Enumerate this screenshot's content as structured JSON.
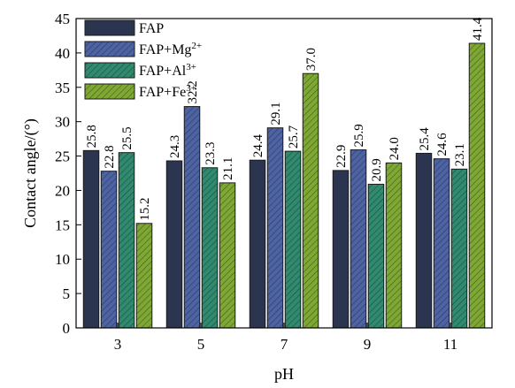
{
  "chart_data": {
    "type": "bar",
    "xlabel": "pH",
    "ylabel": "Contact angle/(°)",
    "ylim": [
      0,
      45
    ],
    "yticks": [
      0,
      5,
      10,
      15,
      20,
      25,
      30,
      35,
      40,
      45
    ],
    "categories": [
      "3",
      "5",
      "7",
      "9",
      "11"
    ],
    "legend_position": "top-left",
    "grid": false,
    "series": [
      {
        "name": "FAP",
        "legend": {
          "base": "FAP",
          "sup": ""
        },
        "color": "#2b3550",
        "hatch": false,
        "values": [
          25.8,
          24.3,
          24.4,
          22.9,
          25.4
        ],
        "labels": [
          "25.8",
          "24.3",
          "24.4",
          "22.9",
          "25.4"
        ]
      },
      {
        "name": "FAP+Mg2+",
        "legend": {
          "base": "FAP+Mg",
          "sup": "2+"
        },
        "color": "#4d63a3",
        "hatch": true,
        "values": [
          22.8,
          32.2,
          29.1,
          25.9,
          24.6
        ],
        "labels": [
          "22.8",
          "32.2",
          "29.1",
          "25.9",
          "24.6"
        ]
      },
      {
        "name": "FAP+Al3+",
        "legend": {
          "base": "FAP+Al",
          "sup": "3+"
        },
        "color": "#2f8a6e",
        "hatch": true,
        "values": [
          25.5,
          23.3,
          25.7,
          20.9,
          23.1
        ],
        "labels": [
          "25.5",
          "23.3",
          "25.7",
          "20.9",
          "23.1"
        ]
      },
      {
        "name": "FAP+Fe3+",
        "legend": {
          "base": "FAP+Fe",
          "sup": "3+"
        },
        "color": "#7fa832",
        "hatch": true,
        "values": [
          15.2,
          21.1,
          37.0,
          24.0,
          41.4
        ],
        "labels": [
          "15.2",
          "21.1",
          "37.0",
          "24.0",
          "41.4"
        ]
      }
    ]
  }
}
